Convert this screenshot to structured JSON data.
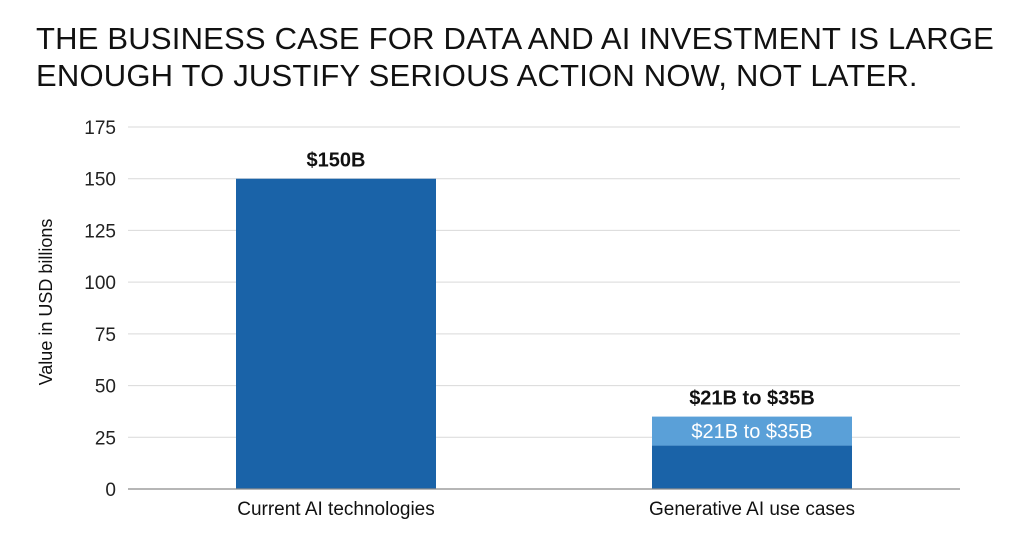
{
  "title_lines": [
    "THE BUSINESS CASE FOR DATA AND AI INVESTMENT IS LARGE",
    "ENOUGH TO JUSTIFY SERIOUS ACTION NOW, NOT LATER."
  ],
  "colors": {
    "primary_bar": "#1a63a8",
    "range_bar": "#5aa0d8",
    "gridline": "#d9d9d9",
    "axis": "#8a8a8a"
  },
  "chart_data": {
    "type": "bar",
    "title": "THE BUSINESS CASE FOR DATA AND AI INVESTMENT IS LARGE ENOUGH TO JUSTIFY SERIOUS ACTION NOW, NOT LATER.",
    "ylabel": "Value in USD billions",
    "xlabel": "",
    "ylim": [
      0,
      175
    ],
    "yticks": [
      "0",
      "25",
      "50",
      "75",
      "100",
      "125",
      "150",
      "175"
    ],
    "grid": true,
    "categories": [
      "Current AI technologies",
      "Generative AI use cases"
    ],
    "bars": [
      {
        "category": "Current AI technologies",
        "low": 150,
        "high": 150,
        "label_above": "$150B",
        "label_inside": ""
      },
      {
        "category": "Generative AI use cases",
        "low": 21,
        "high": 35,
        "label_above": "$21B to $35B",
        "label_inside": "$21B to $35B"
      }
    ]
  }
}
